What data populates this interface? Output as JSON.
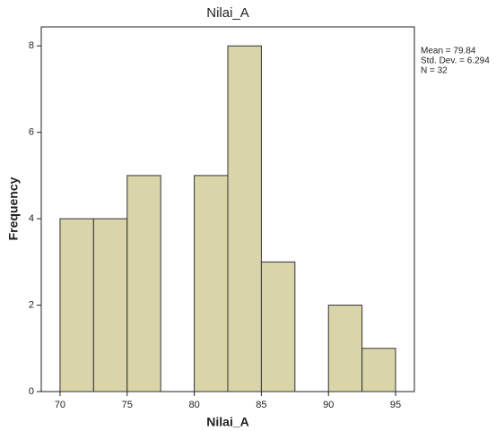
{
  "chart_data": {
    "type": "histogram",
    "title": "Nilai_A",
    "x_label": "Nilai_A",
    "y_label": "Frequency",
    "bins": [
      70,
      72.5,
      75,
      77.5,
      80,
      82.5,
      85,
      87.5,
      90,
      92.5,
      95
    ],
    "values": [
      4,
      4,
      5,
      0,
      5,
      8,
      3,
      0,
      2,
      1
    ],
    "color": "#d9d5a9",
    "edge_color": "#333333",
    "xlim": [
      68.6,
      96.4
    ],
    "xticks": [
      70,
      75,
      80,
      85,
      90,
      95
    ],
    "ylim": [
      0,
      8.44
    ],
    "yticks": [
      0,
      2,
      4,
      6,
      8
    ],
    "annotations": [
      "Mean = 79.84",
      "Std. Dev. = 6.294",
      "N = 32"
    ]
  }
}
